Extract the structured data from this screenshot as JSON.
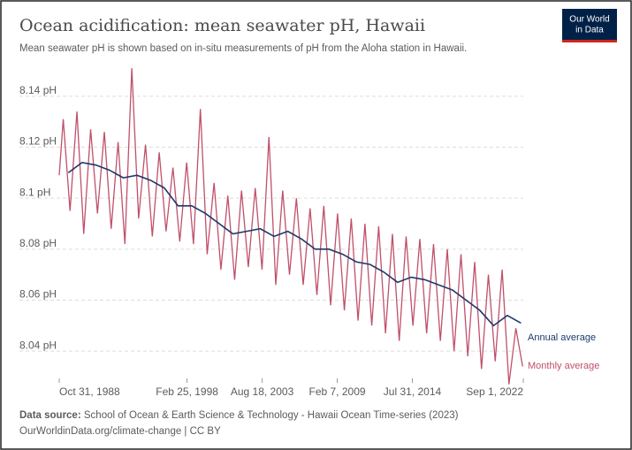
{
  "chart_data": {
    "type": "line",
    "title": "Ocean acidification: mean seawater pH, Hawaii",
    "subtitle": "Mean seawater pH is shown based on in-situ measurements of pH from the Aloha station in Hawaii.",
    "logo": [
      "Our World",
      "in Data"
    ],
    "source_label": "Data source:",
    "source": "School of Ocean & Earth Science & Technology - Hawaii Ocean Time-series (2023)",
    "footer": "OurWorldinData.org/climate-change | CC BY",
    "xlim": [
      "1988-10-31",
      "2022-09-01"
    ],
    "xticks": [
      {
        "value": "1988-10-31",
        "label": "Oct 31, 1988"
      },
      {
        "value": "1998-02-25",
        "label": "Feb 25, 1998"
      },
      {
        "value": "2003-08-18",
        "label": "Aug 18, 2003"
      },
      {
        "value": "2009-02-07",
        "label": "Feb 7, 2009"
      },
      {
        "value": "2014-07-31",
        "label": "Jul 31, 2014"
      },
      {
        "value": "2022-09-01",
        "label": "Sep 1, 2022"
      }
    ],
    "ylim": [
      8.03,
      8.15
    ],
    "yticks": [
      {
        "value": 8.04,
        "label": "8.04 pH"
      },
      {
        "value": 8.06,
        "label": "8.06 pH"
      },
      {
        "value": 8.08,
        "label": "8.08 pH"
      },
      {
        "value": 8.1,
        "label": "8.1 pH"
      },
      {
        "value": 8.12,
        "label": "8.12 pH"
      },
      {
        "value": 8.14,
        "label": "8.14 pH"
      }
    ],
    "grid": true,
    "series": [
      {
        "name": "Monthly average",
        "color": "#c0506a",
        "x": [
          "1988-10-31",
          "1989-02-15",
          "1989-08-15",
          "1990-02-15",
          "1990-08-15",
          "1991-02-15",
          "1991-08-15",
          "1992-02-15",
          "1992-08-15",
          "1993-02-15",
          "1993-08-15",
          "1994-02-15",
          "1994-08-15",
          "1995-02-15",
          "1995-08-15",
          "1996-02-15",
          "1996-08-15",
          "1997-02-15",
          "1997-08-15",
          "1998-02-15",
          "1998-08-15",
          "1999-02-15",
          "1999-08-15",
          "2000-02-15",
          "2000-08-15",
          "2001-02-15",
          "2001-08-15",
          "2002-02-15",
          "2002-08-15",
          "2003-02-15",
          "2003-08-15",
          "2004-02-15",
          "2004-08-15",
          "2005-02-15",
          "2005-08-15",
          "2006-02-15",
          "2006-08-15",
          "2007-02-15",
          "2007-08-15",
          "2008-02-15",
          "2008-08-15",
          "2009-02-15",
          "2009-08-15",
          "2010-02-15",
          "2010-08-15",
          "2011-02-15",
          "2011-08-15",
          "2012-02-15",
          "2012-08-15",
          "2013-02-15",
          "2013-08-15",
          "2014-02-15",
          "2014-08-15",
          "2015-02-15",
          "2015-08-15",
          "2016-02-15",
          "2016-08-15",
          "2017-02-15",
          "2017-08-15",
          "2018-02-15",
          "2018-08-15",
          "2019-02-15",
          "2019-08-15",
          "2020-02-15",
          "2020-08-15",
          "2021-02-15",
          "2021-08-15",
          "2022-02-15",
          "2022-08-15"
        ],
        "values": [
          8.109,
          8.131,
          8.095,
          8.134,
          8.086,
          8.127,
          8.094,
          8.126,
          8.088,
          8.122,
          8.082,
          8.151,
          8.092,
          8.121,
          8.085,
          8.118,
          8.087,
          8.112,
          8.083,
          8.114,
          8.082,
          8.135,
          8.078,
          8.106,
          8.072,
          8.101,
          8.068,
          8.103,
          8.073,
          8.104,
          8.072,
          8.124,
          8.066,
          8.103,
          8.07,
          8.1,
          8.066,
          8.096,
          8.062,
          8.097,
          8.058,
          8.094,
          8.056,
          8.092,
          8.052,
          8.09,
          8.05,
          8.089,
          8.047,
          8.086,
          8.044,
          8.085,
          8.05,
          8.084,
          8.047,
          8.082,
          8.044,
          8.08,
          8.04,
          8.078,
          8.038,
          8.075,
          8.033,
          8.07,
          8.036,
          8.072,
          8.027,
          8.049,
          8.034
        ]
      },
      {
        "name": "Annual average",
        "color": "#1b3a6b",
        "x": [
          "1989-07-01",
          "1990-07-01",
          "1991-07-01",
          "1992-07-01",
          "1993-07-01",
          "1994-07-01",
          "1995-07-01",
          "1996-07-01",
          "1997-07-01",
          "1998-07-01",
          "1999-07-01",
          "2000-07-01",
          "2001-07-01",
          "2002-07-01",
          "2003-07-01",
          "2004-07-01",
          "2005-07-01",
          "2006-07-01",
          "2007-07-01",
          "2008-07-01",
          "2009-07-01",
          "2010-07-01",
          "2011-07-01",
          "2012-07-01",
          "2013-07-01",
          "2014-07-01",
          "2015-07-01",
          "2016-07-01",
          "2017-07-01",
          "2018-07-01",
          "2019-07-01",
          "2020-07-01",
          "2021-07-01",
          "2022-07-01"
        ],
        "values": [
          8.11,
          8.114,
          8.113,
          8.111,
          8.108,
          8.109,
          8.107,
          8.104,
          8.097,
          8.097,
          8.094,
          8.09,
          8.086,
          8.087,
          8.088,
          8.085,
          8.087,
          8.084,
          8.08,
          8.08,
          8.078,
          8.075,
          8.074,
          8.071,
          8.067,
          8.069,
          8.068,
          8.066,
          8.064,
          8.06,
          8.056,
          8.05,
          8.054,
          8.051
        ]
      }
    ]
  }
}
